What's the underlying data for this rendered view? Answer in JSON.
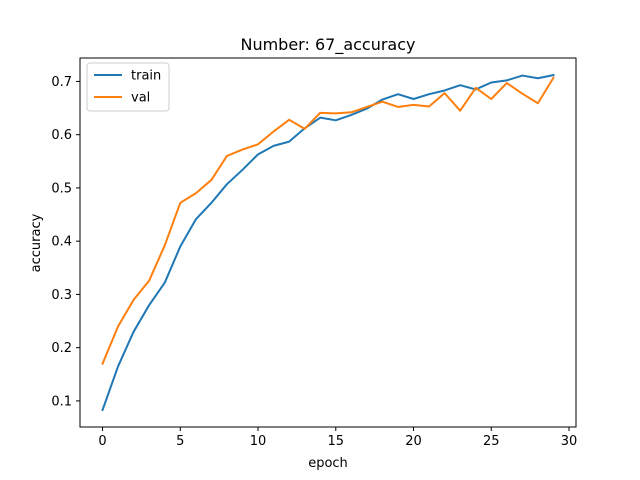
{
  "chart_data": {
    "type": "line",
    "title": "Number: 67_accuracy",
    "xlabel": "epoch",
    "ylabel": "accuracy",
    "xlim": [
      -1.45,
      30.45
    ],
    "ylim": [
      0.051,
      0.744
    ],
    "xticks": [
      0,
      5,
      10,
      15,
      20,
      25,
      30
    ],
    "yticks": [
      0.1,
      0.2,
      0.3,
      0.4,
      0.5,
      0.6,
      0.7
    ],
    "grid": false,
    "legend_position": "top-left",
    "x": [
      0,
      1,
      2,
      3,
      4,
      5,
      6,
      7,
      8,
      9,
      10,
      11,
      12,
      13,
      14,
      15,
      16,
      17,
      18,
      19,
      20,
      21,
      22,
      23,
      24,
      25,
      26,
      27,
      28,
      29
    ],
    "series": [
      {
        "name": "train",
        "color": "#1f77b4",
        "values": [
          0.083,
          0.165,
          0.23,
          0.28,
          0.322,
          0.39,
          0.441,
          0.472,
          0.507,
          0.534,
          0.563,
          0.579,
          0.587,
          0.612,
          0.632,
          0.627,
          0.637,
          0.649,
          0.666,
          0.676,
          0.667,
          0.676,
          0.683,
          0.693,
          0.685,
          0.698,
          0.702,
          0.711,
          0.706,
          0.712
        ]
      },
      {
        "name": "val",
        "color": "#ff7f0e",
        "values": [
          0.17,
          0.24,
          0.29,
          0.326,
          0.392,
          0.472,
          0.49,
          0.515,
          0.56,
          0.572,
          0.582,
          0.606,
          0.628,
          0.611,
          0.641,
          0.64,
          0.642,
          0.652,
          0.662,
          0.652,
          0.656,
          0.653,
          0.678,
          0.645,
          0.688,
          0.667,
          0.697,
          0.677,
          0.659,
          0.707
        ]
      }
    ]
  }
}
